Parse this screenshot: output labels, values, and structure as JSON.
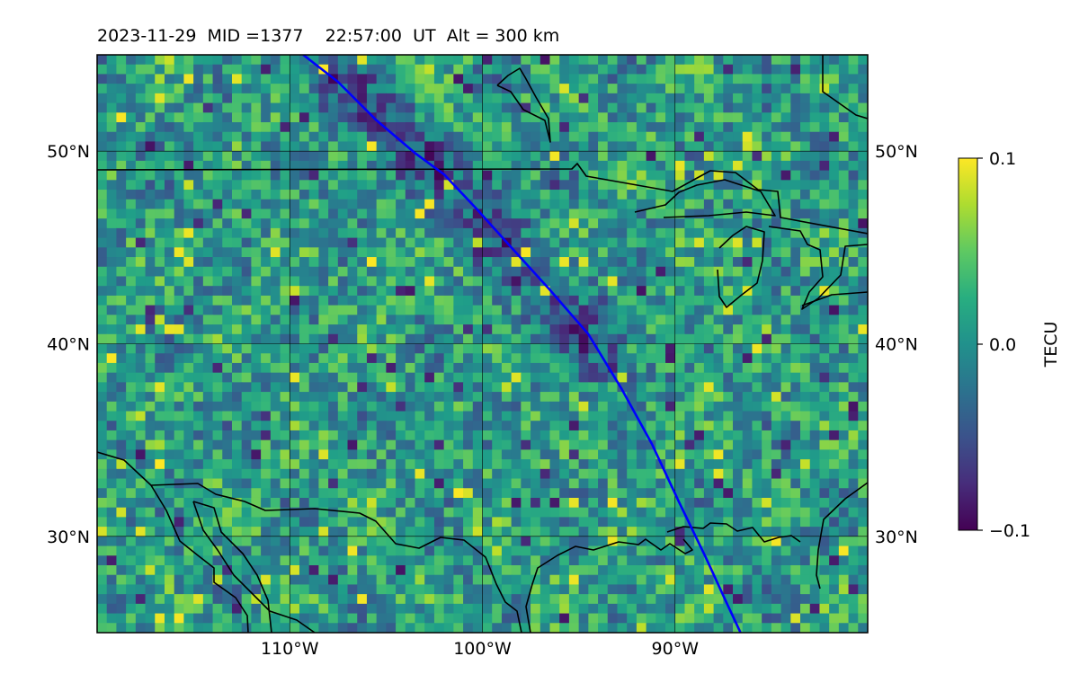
{
  "header": {
    "date": "2023-11-29",
    "mid": "MID =1377",
    "time": "22:57:00",
    "ut": "UT",
    "alt": "Alt = 300 km"
  },
  "map": {
    "projection": "equirectangular",
    "lon_range": [
      -120,
      -80
    ],
    "lat_range": [
      25,
      55
    ],
    "gridlines": true,
    "grid_lons": [
      -110,
      -100,
      -90
    ],
    "grid_lats": [
      30,
      40,
      50
    ],
    "lon_tick_labels": [
      "110°W",
      "100°W",
      "90°W"
    ],
    "lat_tick_labels": [
      "50°N",
      "40°N",
      "30°N"
    ],
    "field": "TEC perturbation (detrended)",
    "colormap": "viridis",
    "cell_size_deg": [
      0.5,
      0.5
    ],
    "features": [
      "coastlines",
      "US-Canada border",
      "Great Lakes",
      "US-Mexico border"
    ]
  },
  "track": {
    "color": "#0000ff",
    "points": [
      [
        -109.3,
        55
      ],
      [
        -107.5,
        53.6
      ],
      [
        -105.5,
        51.6
      ],
      [
        -103.5,
        49.9
      ],
      [
        -102,
        48.8
      ],
      [
        -100.3,
        47
      ],
      [
        -98.5,
        45
      ],
      [
        -96.5,
        42.8
      ],
      [
        -94.5,
        40.5
      ],
      [
        -92.8,
        37.7
      ],
      [
        -91.2,
        34.8
      ],
      [
        -89.8,
        31.8
      ],
      [
        -88.4,
        28.9
      ],
      [
        -87.3,
        26.5
      ],
      [
        -86.6,
        25
      ]
    ]
  },
  "colorbar": {
    "label": "TECU",
    "ticks": [
      "0.1",
      "0.0",
      "−0.1"
    ],
    "vmin": -0.1,
    "vmax": 0.1,
    "colormap": "viridis"
  }
}
